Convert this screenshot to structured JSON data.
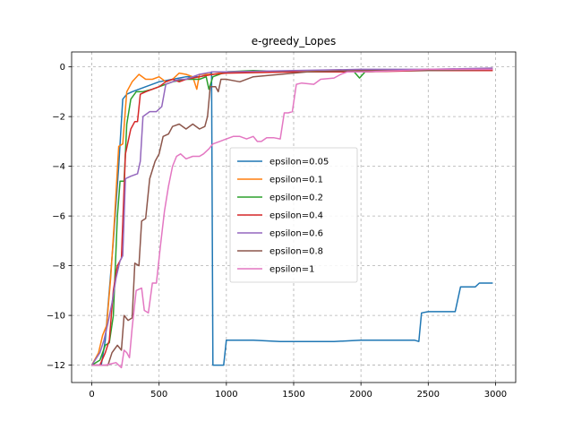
{
  "chart_data": {
    "type": "line",
    "title": "e-greedy_Lopes",
    "xlabel": "",
    "ylabel": "",
    "xlim": [
      -150,
      3150
    ],
    "ylim": [
      -12.7,
      0.6
    ],
    "xticks": [
      0,
      500,
      1000,
      1500,
      2000,
      2500,
      3000
    ],
    "yticks": [
      0,
      -2,
      -4,
      -6,
      -8,
      -10,
      -12
    ],
    "grid": true,
    "legend_position": "center",
    "series": [
      {
        "name": "epsilon=0.05",
        "color": "#1f77b4",
        "points": [
          [
            0,
            -12
          ],
          [
            40,
            -12
          ],
          [
            70,
            -12
          ],
          [
            100,
            -11
          ],
          [
            130,
            -9
          ],
          [
            160,
            -7
          ],
          [
            200,
            -4
          ],
          [
            230,
            -1.3
          ],
          [
            260,
            -1.1
          ],
          [
            300,
            -1.0
          ],
          [
            400,
            -0.8
          ],
          [
            500,
            -0.6
          ],
          [
            600,
            -0.5
          ],
          [
            700,
            -0.4
          ],
          [
            800,
            -0.4
          ],
          [
            880,
            -0.3
          ],
          [
            890,
            -0.2
          ],
          [
            900,
            -12
          ],
          [
            950,
            -12
          ],
          [
            980,
            -12
          ],
          [
            1000,
            -11
          ],
          [
            1200,
            -11
          ],
          [
            1400,
            -11.05
          ],
          [
            1600,
            -11.05
          ],
          [
            1800,
            -11.05
          ],
          [
            2000,
            -11.0
          ],
          [
            2200,
            -11.0
          ],
          [
            2400,
            -11.0
          ],
          [
            2430,
            -11.05
          ],
          [
            2450,
            -9.9
          ],
          [
            2500,
            -9.85
          ],
          [
            2600,
            -9.85
          ],
          [
            2700,
            -9.85
          ],
          [
            2740,
            -8.85
          ],
          [
            2850,
            -8.85
          ],
          [
            2880,
            -8.7
          ],
          [
            2980,
            -8.7
          ]
        ]
      },
      {
        "name": "epsilon=0.1",
        "color": "#ff7f0e",
        "points": [
          [
            0,
            -12
          ],
          [
            50,
            -11.5
          ],
          [
            80,
            -10.8
          ],
          [
            110,
            -10.4
          ],
          [
            140,
            -8.5
          ],
          [
            170,
            -6
          ],
          [
            200,
            -3.2
          ],
          [
            230,
            -3.1
          ],
          [
            260,
            -1.0
          ],
          [
            300,
            -0.6
          ],
          [
            350,
            -0.3
          ],
          [
            400,
            -0.5
          ],
          [
            450,
            -0.5
          ],
          [
            500,
            -0.4
          ],
          [
            550,
            -0.6
          ],
          [
            600,
            -0.5
          ],
          [
            650,
            -0.25
          ],
          [
            700,
            -0.3
          ],
          [
            750,
            -0.4
          ],
          [
            780,
            -0.9
          ],
          [
            800,
            -0.3
          ],
          [
            900,
            -0.3
          ],
          [
            1000,
            -0.2
          ],
          [
            1500,
            -0.2
          ],
          [
            2000,
            -0.15
          ],
          [
            2500,
            -0.15
          ],
          [
            2980,
            -0.1
          ]
        ]
      },
      {
        "name": "epsilon=0.2",
        "color": "#2ca02c",
        "points": [
          [
            0,
            -12
          ],
          [
            60,
            -11.8
          ],
          [
            100,
            -11.2
          ],
          [
            130,
            -11.1
          ],
          [
            160,
            -10.0
          ],
          [
            190,
            -6
          ],
          [
            210,
            -4.6
          ],
          [
            240,
            -4.6
          ],
          [
            260,
            -2.3
          ],
          [
            290,
            -1.3
          ],
          [
            330,
            -1.0
          ],
          [
            380,
            -1.0
          ],
          [
            450,
            -0.9
          ],
          [
            500,
            -0.8
          ],
          [
            600,
            -0.6
          ],
          [
            700,
            -0.5
          ],
          [
            800,
            -0.5
          ],
          [
            850,
            -0.4
          ],
          [
            870,
            -0.9
          ],
          [
            900,
            -0.4
          ],
          [
            1000,
            -0.2
          ],
          [
            1200,
            -0.15
          ],
          [
            1500,
            -0.2
          ],
          [
            1800,
            -0.2
          ],
          [
            1950,
            -0.2
          ],
          [
            1990,
            -0.45
          ],
          [
            2030,
            -0.2
          ],
          [
            2500,
            -0.1
          ],
          [
            2980,
            -0.1
          ]
        ]
      },
      {
        "name": "epsilon=0.4",
        "color": "#d62728",
        "points": [
          [
            0,
            -12
          ],
          [
            60,
            -12
          ],
          [
            100,
            -11.5
          ],
          [
            130,
            -11
          ],
          [
            160,
            -9
          ],
          [
            190,
            -8
          ],
          [
            220,
            -7.7
          ],
          [
            250,
            -3.5
          ],
          [
            290,
            -2.5
          ],
          [
            320,
            -2.2
          ],
          [
            340,
            -2.2
          ],
          [
            360,
            -1.1
          ],
          [
            400,
            -1.0
          ],
          [
            450,
            -0.9
          ],
          [
            500,
            -0.8
          ],
          [
            550,
            -0.6
          ],
          [
            600,
            -0.5
          ],
          [
            650,
            -0.6
          ],
          [
            700,
            -0.5
          ],
          [
            800,
            -0.4
          ],
          [
            900,
            -0.3
          ],
          [
            1000,
            -0.25
          ],
          [
            1500,
            -0.2
          ],
          [
            2000,
            -0.2
          ],
          [
            2500,
            -0.15
          ],
          [
            2980,
            -0.15
          ]
        ]
      },
      {
        "name": "epsilon=0.6",
        "color": "#9467bd",
        "points": [
          [
            0,
            -12
          ],
          [
            60,
            -11.5
          ],
          [
            90,
            -11.0
          ],
          [
            120,
            -10.3
          ],
          [
            150,
            -9.5
          ],
          [
            180,
            -8.5
          ],
          [
            210,
            -7.8
          ],
          [
            230,
            -7.6
          ],
          [
            250,
            -4.5
          ],
          [
            290,
            -4.4
          ],
          [
            340,
            -4.3
          ],
          [
            360,
            -3.8
          ],
          [
            380,
            -2.0
          ],
          [
            430,
            -1.8
          ],
          [
            480,
            -1.8
          ],
          [
            520,
            -1.6
          ],
          [
            550,
            -0.7
          ],
          [
            600,
            -0.6
          ],
          [
            650,
            -0.5
          ],
          [
            700,
            -0.5
          ],
          [
            800,
            -0.3
          ],
          [
            900,
            -0.2
          ],
          [
            1000,
            -0.2
          ],
          [
            1500,
            -0.15
          ],
          [
            2000,
            -0.1
          ],
          [
            2500,
            -0.1
          ],
          [
            2980,
            -0.05
          ]
        ]
      },
      {
        "name": "epsilon=0.8",
        "color": "#8c564b",
        "points": [
          [
            0,
            -12
          ],
          [
            80,
            -12
          ],
          [
            120,
            -12
          ],
          [
            150,
            -11.5
          ],
          [
            190,
            -11.2
          ],
          [
            220,
            -11.4
          ],
          [
            240,
            -10.0
          ],
          [
            270,
            -10.2
          ],
          [
            300,
            -10.1
          ],
          [
            320,
            -7.9
          ],
          [
            350,
            -8.0
          ],
          [
            370,
            -6.2
          ],
          [
            400,
            -6.1
          ],
          [
            430,
            -4.5
          ],
          [
            470,
            -3.8
          ],
          [
            500,
            -3.5
          ],
          [
            530,
            -2.8
          ],
          [
            570,
            -2.7
          ],
          [
            600,
            -2.4
          ],
          [
            650,
            -2.3
          ],
          [
            700,
            -2.5
          ],
          [
            750,
            -2.3
          ],
          [
            800,
            -2.5
          ],
          [
            840,
            -2.4
          ],
          [
            860,
            -2.0
          ],
          [
            880,
            -0.8
          ],
          [
            920,
            -0.8
          ],
          [
            940,
            -1.0
          ],
          [
            960,
            -0.5
          ],
          [
            1000,
            -0.5
          ],
          [
            1100,
            -0.6
          ],
          [
            1200,
            -0.4
          ],
          [
            1300,
            -0.35
          ],
          [
            1400,
            -0.3
          ],
          [
            1500,
            -0.25
          ],
          [
            1600,
            -0.2
          ],
          [
            2000,
            -0.15
          ],
          [
            2500,
            -0.15
          ],
          [
            2980,
            -0.1
          ]
        ]
      },
      {
        "name": "epsilon=1",
        "color": "#e377c2",
        "points": [
          [
            0,
            -12
          ],
          [
            100,
            -12
          ],
          [
            180,
            -11.9
          ],
          [
            220,
            -12.1
          ],
          [
            240,
            -11.4
          ],
          [
            260,
            -11.5
          ],
          [
            280,
            -11.7
          ],
          [
            300,
            -10.5
          ],
          [
            330,
            -9.0
          ],
          [
            370,
            -8.9
          ],
          [
            390,
            -9.8
          ],
          [
            420,
            -9.9
          ],
          [
            450,
            -8.7
          ],
          [
            480,
            -8.7
          ],
          [
            510,
            -7.2
          ],
          [
            540,
            -5.8
          ],
          [
            570,
            -4.8
          ],
          [
            600,
            -4.0
          ],
          [
            630,
            -3.6
          ],
          [
            660,
            -3.5
          ],
          [
            700,
            -3.7
          ],
          [
            750,
            -3.6
          ],
          [
            800,
            -3.6
          ],
          [
            830,
            -3.5
          ],
          [
            870,
            -3.3
          ],
          [
            900,
            -3.1
          ],
          [
            950,
            -3.0
          ],
          [
            1000,
            -2.9
          ],
          [
            1050,
            -2.8
          ],
          [
            1100,
            -2.8
          ],
          [
            1150,
            -2.9
          ],
          [
            1200,
            -2.8
          ],
          [
            1230,
            -3.0
          ],
          [
            1260,
            -3.0
          ],
          [
            1300,
            -2.85
          ],
          [
            1350,
            -2.85
          ],
          [
            1400,
            -2.9
          ],
          [
            1430,
            -1.85
          ],
          [
            1460,
            -1.85
          ],
          [
            1490,
            -1.8
          ],
          [
            1520,
            -0.7
          ],
          [
            1560,
            -0.65
          ],
          [
            1650,
            -0.7
          ],
          [
            1700,
            -0.5
          ],
          [
            1800,
            -0.45
          ],
          [
            1850,
            -0.3
          ],
          [
            1900,
            -0.2
          ],
          [
            2000,
            -0.2
          ],
          [
            2300,
            -0.15
          ],
          [
            2500,
            -0.1
          ],
          [
            2800,
            -0.1
          ],
          [
            2980,
            -0.1
          ]
        ]
      }
    ]
  }
}
